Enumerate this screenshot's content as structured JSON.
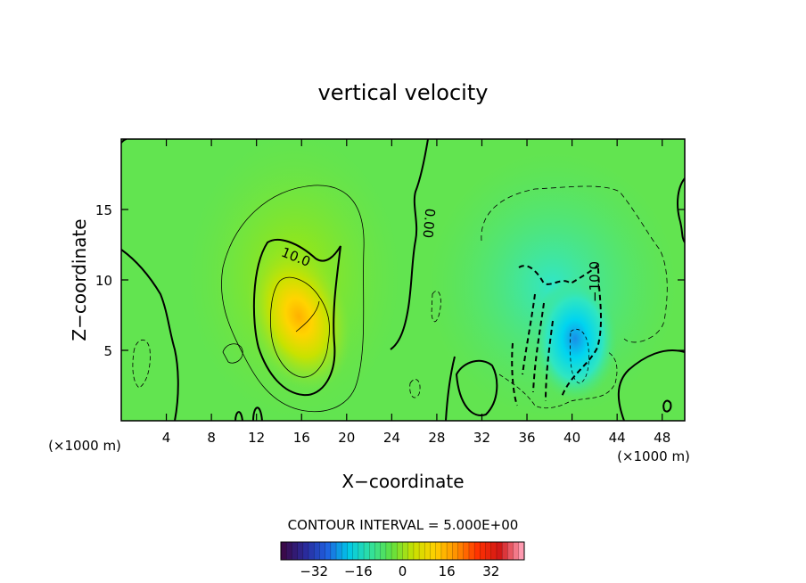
{
  "chart_data": {
    "type": "heatmap",
    "title": "vertical velocity",
    "xlabel": "X−coordinate",
    "ylabel": "Z−coordinate",
    "x_unit_left": "(×1000 m)",
    "x_unit_right": "(×1000 m)",
    "xlim": [
      0,
      50
    ],
    "ylim": [
      0,
      20
    ],
    "x_ticks": [
      4,
      8,
      12,
      16,
      20,
      24,
      28,
      32,
      36,
      40,
      44,
      48
    ],
    "y_ticks": [
      5,
      10,
      15
    ],
    "contour_interval_label": "CONTOUR INTERVAL = 5.000E+00",
    "contour_labels": [
      "10.0",
      "0.00",
      "−10.0"
    ],
    "colorbar": {
      "range": [
        -44,
        44
      ],
      "tick_labels": [
        "−32",
        "−16",
        "0",
        "16",
        "32"
      ],
      "tick_values": [
        -32,
        -16,
        0,
        16,
        32
      ],
      "colormap": [
        "#3a0a4a",
        "#2a2a9a",
        "#1f5fe0",
        "#00c8e8",
        "#30e0a0",
        "#60e040",
        "#c8e000",
        "#ffd000",
        "#ff9000",
        "#ff3000",
        "#d01818",
        "#ff9ab0"
      ]
    },
    "features": [
      {
        "kind": "updraft",
        "x": 15.5,
        "z": 7.5,
        "peak": 19
      },
      {
        "kind": "downdraft",
        "x": 40.5,
        "z": 5.0,
        "peak": -19
      }
    ],
    "background_value": 2
  }
}
